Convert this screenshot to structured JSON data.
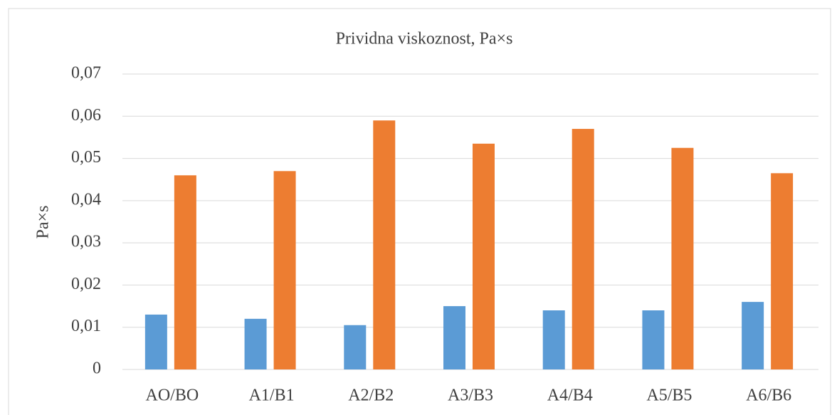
{
  "chart_data": {
    "type": "bar",
    "title": "Prividna viskoznost, Pa×s",
    "y_label": "Pa×s",
    "categories": [
      "AO/BO",
      "A1/B1",
      "A2/B2",
      "A3/B3",
      "A4/B4",
      "A5/B5",
      "A6/B6"
    ],
    "series": [
      {
        "color": "#5b9bd5",
        "values": [
          0.013,
          0.012,
          0.0105,
          0.015,
          0.014,
          0.014,
          0.016
        ]
      },
      {
        "color": "#ed7d31",
        "values": [
          0.046,
          0.047,
          0.059,
          0.0535,
          0.057,
          0.0525,
          0.0465
        ]
      }
    ],
    "ylim": [
      0,
      0.07
    ],
    "yticks": [
      0,
      {
        "value": 0.01,
        "label": "0,01"
      },
      {
        "value": 0.02,
        "label": "0,02"
      },
      {
        "value": 0.03,
        "label": "0,03"
      },
      {
        "value": 0.04,
        "label": "0,04"
      },
      {
        "value": 0.05,
        "label": "0,05"
      },
      {
        "value": 0.06,
        "label": "0,06"
      },
      {
        "value": 0.07,
        "label": "0,07"
      }
    ],
    "grid": true
  }
}
